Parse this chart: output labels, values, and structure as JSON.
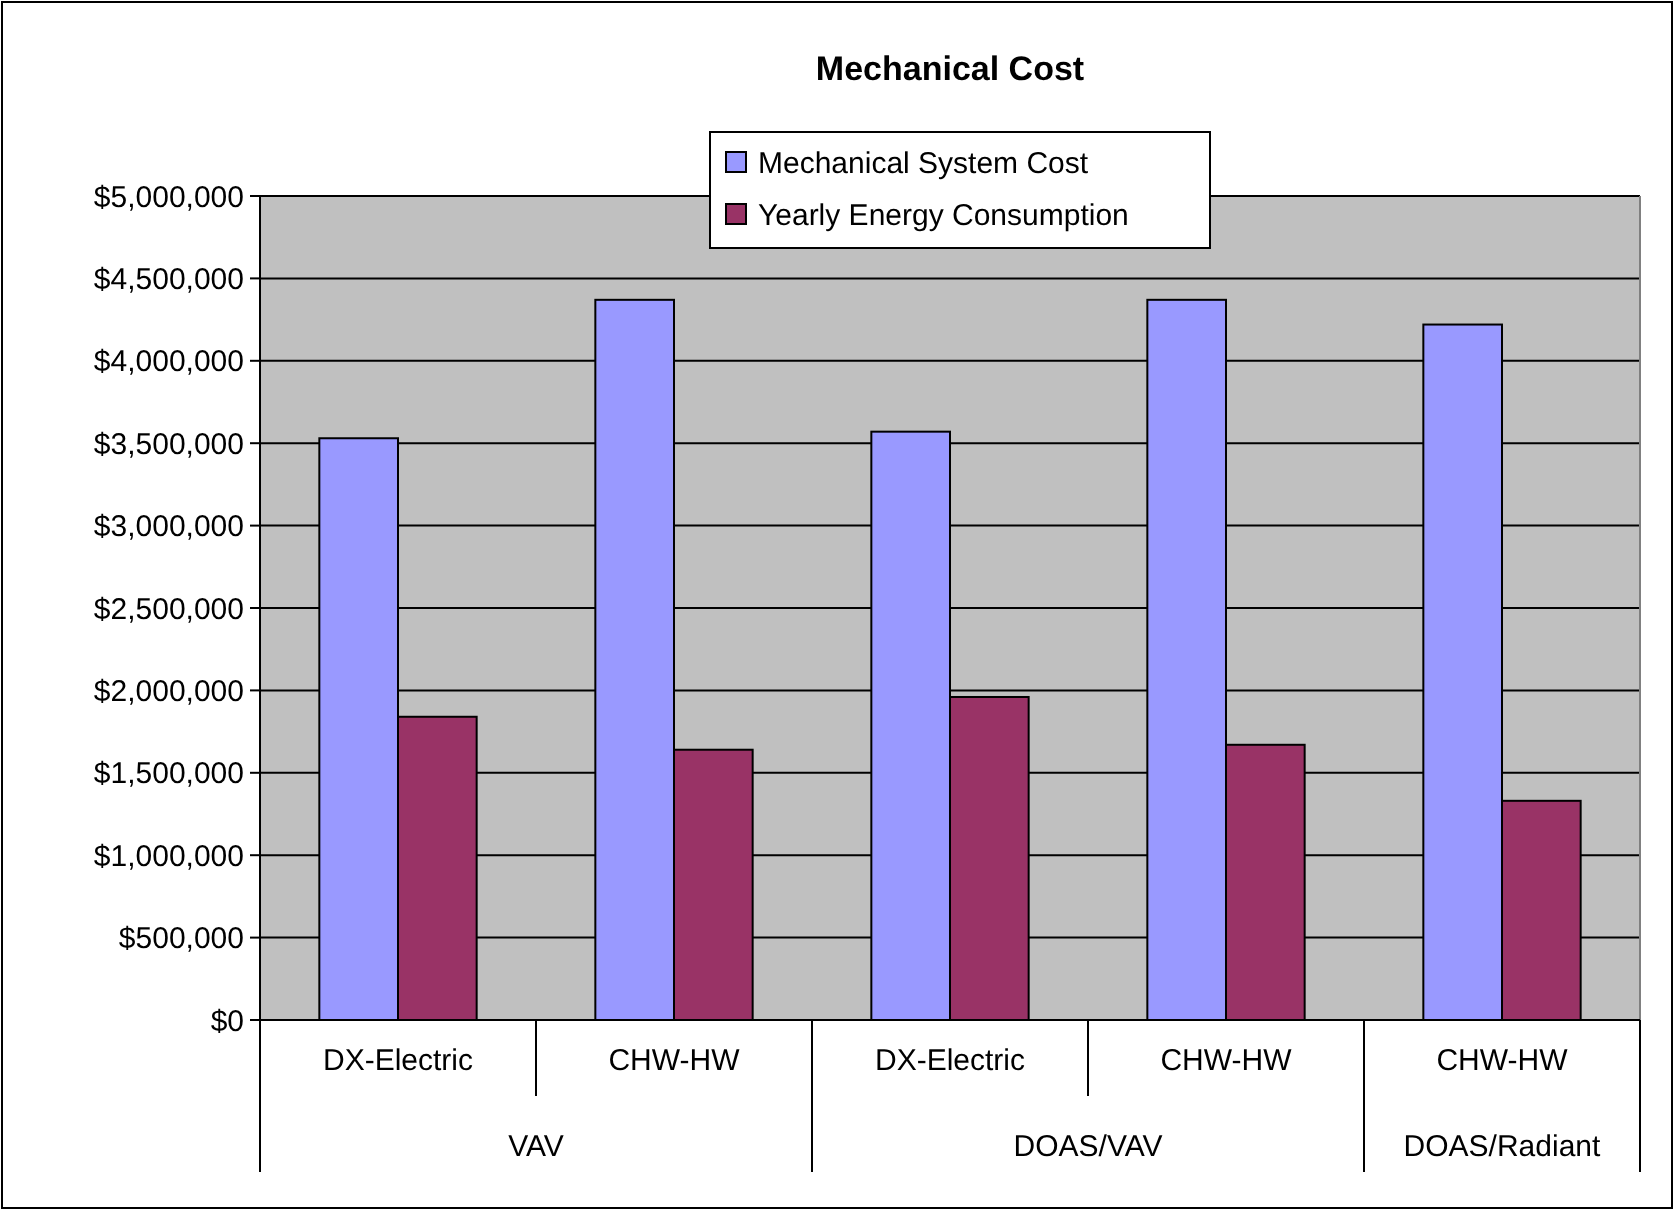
{
  "chart_data": {
    "type": "bar",
    "title": "Mechanical Cost",
    "categories": [
      "DX-Electric",
      "CHW-HW",
      "DX-Electric",
      "CHW-HW",
      "CHW-HW"
    ],
    "annotations": [
      "VAV",
      "DOAS/VAV",
      "DOAS/Radiant"
    ],
    "series": [
      {
        "name": "Mechanical System Cost",
        "color": "#9999ff",
        "values": [
          3530000,
          4370000,
          3570000,
          4370000,
          4220000
        ]
      },
      {
        "name": "Yearly Energy Consumption",
        "color": "#993366",
        "values": [
          1840000,
          1640000,
          1960000,
          1670000,
          1330000
        ]
      }
    ],
    "ylim": [
      0,
      5000000
    ],
    "yticks": [
      {
        "value": 0,
        "label": "$0"
      },
      {
        "value": 500000,
        "label": "$500,000"
      },
      {
        "value": 1000000,
        "label": "$1,000,000"
      },
      {
        "value": 1500000,
        "label": "$1,500,000"
      },
      {
        "value": 2000000,
        "label": "$2,000,000"
      },
      {
        "value": 2500000,
        "label": "$2,500,000"
      },
      {
        "value": 3000000,
        "label": "$3,000,000"
      },
      {
        "value": 3500000,
        "label": "$3,500,000"
      },
      {
        "value": 4000000,
        "label": "$4,000,000"
      },
      {
        "value": 4500000,
        "label": "$4,500,000"
      },
      {
        "value": 5000000,
        "label": "$5,000,000"
      }
    ],
    "grid": "y",
    "legend": "top"
  }
}
